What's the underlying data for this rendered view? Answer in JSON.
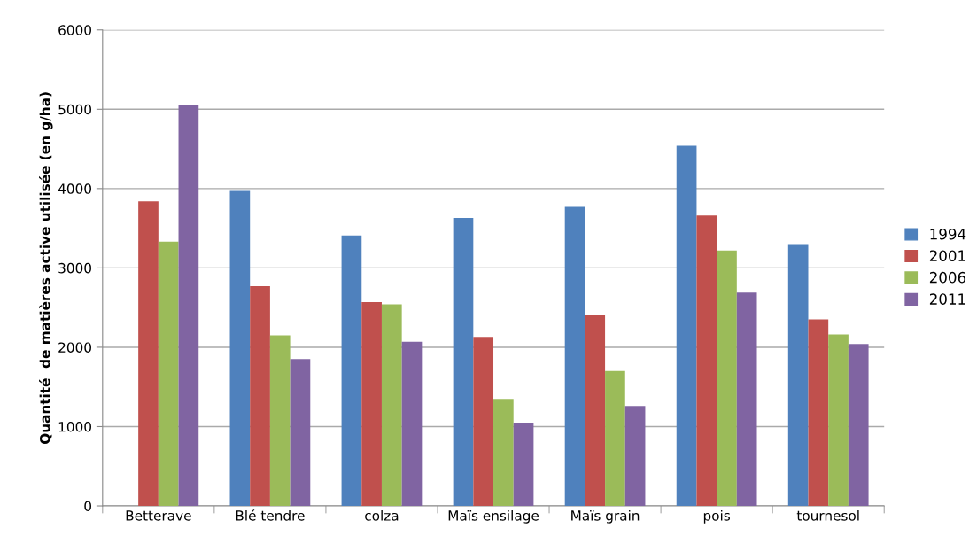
{
  "chart_data": {
    "type": "bar",
    "ylabel": "Quantité  de matières active utilisée (en g/ha)",
    "categories": [
      "Betterave",
      "Blé tendre",
      "colza",
      "Maïs ensilage",
      "Maïs grain",
      "pois",
      "tournesol"
    ],
    "series": [
      {
        "name": "1994",
        "color": "#4f81bd",
        "values": [
          null,
          3970,
          3410,
          3630,
          3770,
          4540,
          3300
        ]
      },
      {
        "name": "2001",
        "color": "#c0504d",
        "values": [
          3840,
          2770,
          2570,
          2130,
          2400,
          3660,
          2350
        ]
      },
      {
        "name": "2006",
        "color": "#9bbb59",
        "values": [
          3330,
          2150,
          2540,
          1350,
          1700,
          3220,
          2160
        ]
      },
      {
        "name": "2011",
        "color": "#8064a2",
        "values": [
          5050,
          1850,
          2070,
          1050,
          1260,
          2690,
          2040
        ]
      }
    ],
    "ylim": [
      0,
      6000
    ],
    "yticks": [
      0,
      1000,
      2000,
      3000,
      4000,
      5000,
      6000
    ],
    "grid": "y",
    "legend": "right"
  }
}
